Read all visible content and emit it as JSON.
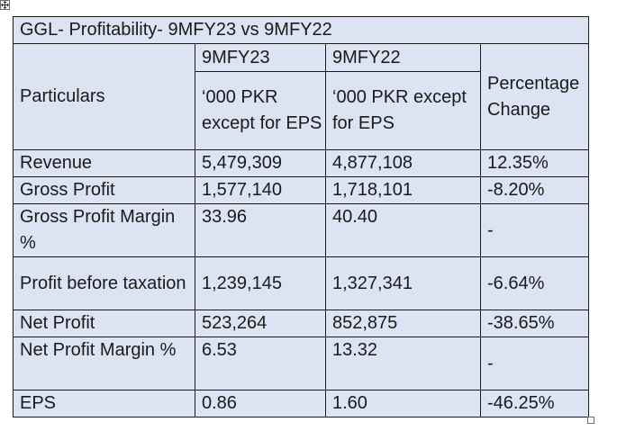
{
  "table": {
    "title": "GGL- Profitability- 9MFY23 vs 9MFY22",
    "header": {
      "particulars": "Particulars",
      "col1_year": "9MFY23",
      "col1_unit": "‘000 PKR except for EPS",
      "col2_year": "9MFY22",
      "col2_unit": "‘000 PKR except for EPS",
      "change": "Percentage Change"
    },
    "rows": [
      {
        "particular": "Revenue",
        "fy23": "5,479,309",
        "fy22": "4,877,108",
        "change": "12.35%"
      },
      {
        "particular": "Gross Profit",
        "fy23": "1,577,140",
        "fy22": "1,718,101",
        "change": "-8.20%"
      },
      {
        "particular": "Gross Profit Margin %",
        "fy23": "33.96",
        "fy22": "40.40",
        "change": "-"
      },
      {
        "particular": "Profit before taxation",
        "fy23": "1,239,145",
        "fy22": "1,327,341",
        "change": "-6.64%"
      },
      {
        "particular": "Net Profit",
        "fy23": "523,264",
        "fy22": "852,875",
        "change": "-38.65%"
      },
      {
        "particular": "Net Profit Margin %",
        "fy23": "6.53",
        "fy22": "13.32",
        "change": "-"
      },
      {
        "particular": "EPS",
        "fy23": "0.86",
        "fy22": "1.60",
        "change": "-46.25%"
      }
    ]
  },
  "icons": {
    "move_handle": "move-arrows-icon",
    "resize_handle": "resize-square-icon"
  },
  "colors": {
    "cell_fill": "#dce4f3",
    "border": "#1a1a1a"
  }
}
